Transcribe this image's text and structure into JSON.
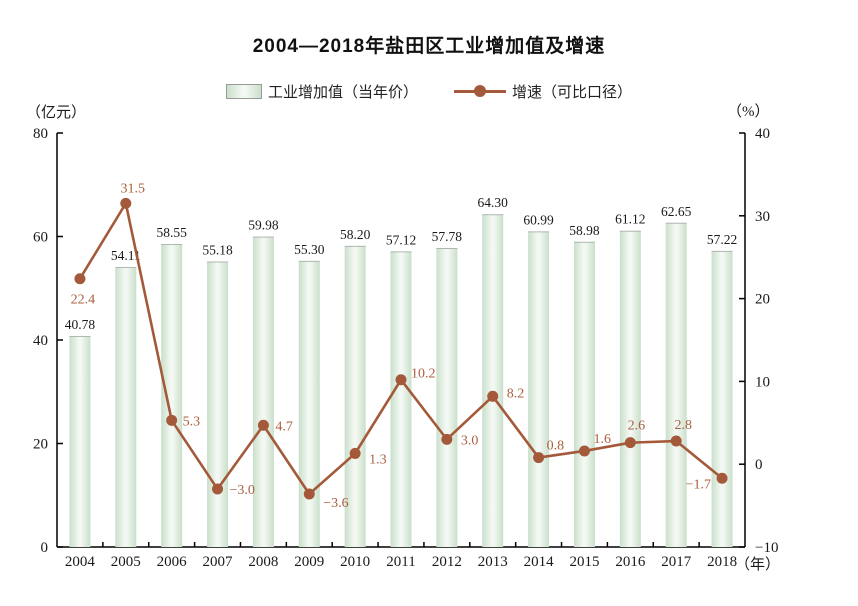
{
  "title": "2004—2018年盐田区工业增加值及增速",
  "legend": {
    "bar": "工业增加值（当年价）",
    "line": "增速（可比口径）"
  },
  "axes": {
    "left_unit": "（亿元）",
    "right_unit": "（%）",
    "x_unit": "（年）"
  },
  "colors": {
    "bar_edge": "#c9dfca",
    "bar_center": "#f3f8f3",
    "bar_top_cap": "#b0b7b0",
    "line": "#a45a3a",
    "line_label": "#ab5f3e",
    "axis": "#000000",
    "text": "#1a1a1a"
  },
  "chart_data": {
    "type": "bar",
    "subtype": "bar+line combo",
    "title": "2004—2018年盐田区工业增加值及增速",
    "categories": [
      "2004",
      "2005",
      "2006",
      "2007",
      "2008",
      "2009",
      "2010",
      "2011",
      "2012",
      "2013",
      "2014",
      "2015",
      "2016",
      "2017",
      "2018"
    ],
    "series": [
      {
        "name": "工业增加值（当年价）",
        "type": "bar",
        "axis": "left",
        "unit": "亿元",
        "values": [
          40.78,
          54.11,
          58.55,
          55.18,
          59.98,
          55.3,
          58.2,
          57.12,
          57.78,
          64.3,
          60.99,
          58.98,
          61.12,
          62.65,
          57.22
        ]
      },
      {
        "name": "增速（可比口径）",
        "type": "line",
        "axis": "right",
        "unit": "%",
        "values": [
          22.4,
          31.5,
          5.3,
          -3.0,
          4.7,
          -3.6,
          1.3,
          10.2,
          3.0,
          8.2,
          0.8,
          1.6,
          2.6,
          2.8,
          -1.7
        ]
      }
    ],
    "left_axis": {
      "label": "（亿元）",
      "min": 0,
      "max": 80,
      "ticks": [
        0,
        20,
        40,
        60,
        80
      ]
    },
    "right_axis": {
      "label": "（%）",
      "min": -10,
      "max": 40,
      "ticks": [
        -10,
        0,
        10,
        20,
        30,
        40
      ]
    },
    "x_axis": {
      "label": "（年）"
    },
    "grid": false,
    "legend_position": "top-center",
    "data_labels": true
  }
}
